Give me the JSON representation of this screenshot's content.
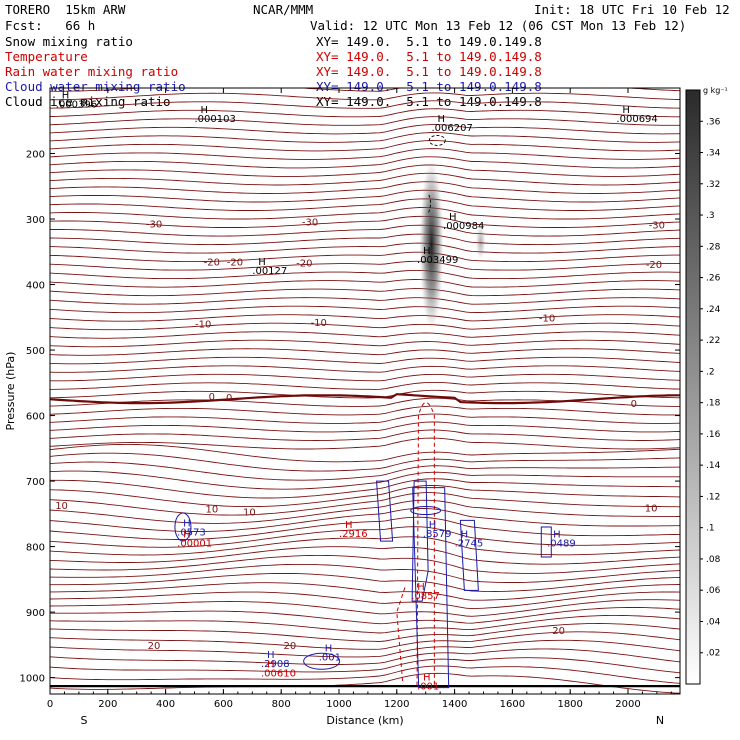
{
  "header": {
    "model": "TORERO  15km ARW",
    "center": "NCAR/MMM",
    "init": "Init: 18 UTC Fri 10 Feb 12",
    "fcst": "Fcst:   66 h",
    "valid": "Valid: 12 UTC Mon 13 Feb 12 (06 CST Mon 13 Feb 12)"
  },
  "fields": [
    {
      "name": "Snow mixing ratio",
      "color": "#000000",
      "xy": "XY= 149.0.  5.1 to 149.0.149.8"
    },
    {
      "name": "Temperature",
      "color": "#cc0000",
      "xy": "XY= 149.0.  5.1 to 149.0.149.8"
    },
    {
      "name": "Rain water mixing ratio",
      "color": "#cc0000",
      "xy": "XY= 149.0.  5.1 to 149.0.149.8"
    },
    {
      "name": "Cloud water mixing ratio",
      "color": "#1a1aaa",
      "xy": "XY= 149.0.  5.1 to 149.0.149.8"
    },
    {
      "name": "Cloud ice mixing ratio",
      "color": "#000000",
      "xy": "XY= 149.0.  5.1 to 149.0.149.8"
    }
  ],
  "chart_data": {
    "type": "cross-section",
    "xlabel": "Distance (km)",
    "ylabel": "Pressure (hPa)",
    "x_ticks": [
      0,
      200,
      400,
      600,
      800,
      1000,
      1200,
      1400,
      1600,
      1800,
      2000
    ],
    "y_ticks": [
      200,
      300,
      400,
      500,
      600,
      700,
      800,
      900,
      1000
    ],
    "xlim": [
      0,
      2180
    ],
    "ylim": [
      1025,
      100
    ],
    "left_label": "S",
    "right_label": "N",
    "colorbar": {
      "unit": "g kg⁻¹",
      "ticks": [
        ".36",
        ".34",
        ".32",
        ".3",
        ".28",
        ".26",
        ".24",
        ".22",
        ".2",
        ".18",
        ".16",
        ".14",
        ".12",
        ".1",
        ".08",
        ".06",
        ".04",
        ".02"
      ]
    },
    "isotherm_labels": [
      {
        "text": "-30",
        "x": 360,
        "p": 308
      },
      {
        "text": "-30",
        "x": 900,
        "p": 305
      },
      {
        "text": "-30",
        "x": 2100,
        "p": 310
      },
      {
        "text": "-20",
        "x": 560,
        "p": 366
      },
      {
        "text": "-20",
        "x": 640,
        "p": 366
      },
      {
        "text": "-20",
        "x": 880,
        "p": 368
      },
      {
        "text": "-20",
        "x": 2090,
        "p": 370
      },
      {
        "text": "-10",
        "x": 530,
        "p": 461
      },
      {
        "text": "-10",
        "x": 930,
        "p": 459
      },
      {
        "text": "-10",
        "x": 1720,
        "p": 452
      },
      {
        "text": "0",
        "x": 560,
        "p": 572
      },
      {
        "text": "0",
        "x": 620,
        "p": 573
      },
      {
        "text": "0",
        "x": 2020,
        "p": 582
      },
      {
        "text": "10",
        "x": 40,
        "p": 738
      },
      {
        "text": "10",
        "x": 560,
        "p": 743
      },
      {
        "text": "10",
        "x": 690,
        "p": 748
      },
      {
        "text": "10",
        "x": 2080,
        "p": 742
      },
      {
        "text": "20",
        "x": 360,
        "p": 952
      },
      {
        "text": "20",
        "x": 830,
        "p": 952
      },
      {
        "text": "20",
        "x": 1760,
        "p": 929
      }
    ],
    "maxima": [
      {
        "text": ".000396",
        "x": 20,
        "p": 130,
        "color": "#000000"
      },
      {
        "text": ".000103",
        "x": 500,
        "p": 152,
        "color": "#000000"
      },
      {
        "text": ".006207",
        "x": 1320,
        "p": 166,
        "color": "#000000"
      },
      {
        "text": ".000694",
        "x": 1960,
        "p": 152,
        "color": "#000000"
      },
      {
        "text": ".000984",
        "x": 1360,
        "p": 315,
        "color": "#000000"
      },
      {
        "text": ".003499",
        "x": 1270,
        "p": 367,
        "color": "#000000"
      },
      {
        "text": ".00127",
        "x": 700,
        "p": 384,
        "color": "#000000"
      },
      {
        "text": ".0573",
        "x": 440,
        "p": 783,
        "color": "#1a1aaa"
      },
      {
        "text": ".00001",
        "x": 440,
        "p": 800,
        "color": "#cc0000"
      },
      {
        "text": ".2916",
        "x": 1000,
        "p": 785,
        "color": "#cc0000"
      },
      {
        "text": ".8579",
        "x": 1290,
        "p": 785,
        "color": "#1a1aaa"
      },
      {
        "text": ".2745",
        "x": 1400,
        "p": 800,
        "color": "#1a1aaa"
      },
      {
        "text": ".0489",
        "x": 1720,
        "p": 800,
        "color": "#1a1aaa"
      },
      {
        "text": ".0857",
        "x": 1250,
        "p": 880,
        "color": "#cc0000"
      },
      {
        "text": ".2908",
        "x": 730,
        "p": 984,
        "color": "#1a1aaa"
      },
      {
        "text": ".00610",
        "x": 730,
        "p": 998,
        "color": "#cc0000"
      },
      {
        "text": ".001",
        "x": 930,
        "p": 974,
        "color": "#1a1aaa"
      },
      {
        "text": ".001",
        "x": 1270,
        "p": 1018,
        "color": "#cc0000"
      }
    ]
  }
}
